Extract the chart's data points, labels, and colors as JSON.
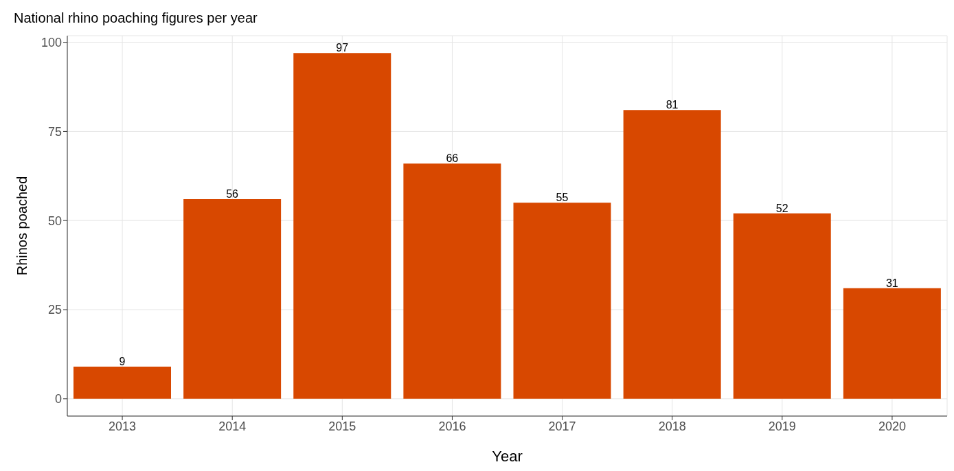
{
  "chart_data": {
    "type": "bar",
    "title": "National rhino poaching figures per year",
    "xlabel": "Year",
    "ylabel": "Rhinos poached",
    "categories": [
      "2013",
      "2014",
      "2015",
      "2016",
      "2017",
      "2018",
      "2019",
      "2020"
    ],
    "values": [
      9,
      56,
      97,
      66,
      55,
      81,
      52,
      31
    ],
    "color": "#d84800",
    "ylim": [
      -4.85,
      101.85
    ],
    "yticks": [
      0,
      25,
      50,
      75,
      100
    ],
    "grid": true,
    "data_labels": true
  }
}
